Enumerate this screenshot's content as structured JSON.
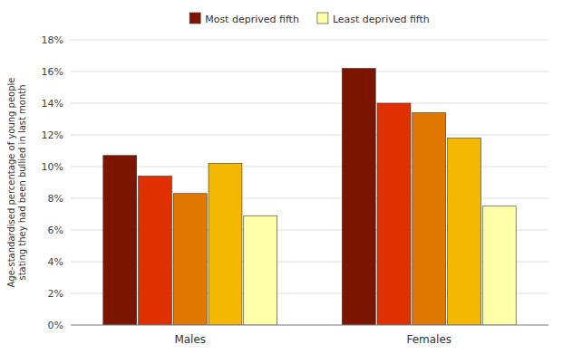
{
  "chart_data": {
    "type": "bar",
    "categories": [
      "Males",
      "Females"
    ],
    "series": [
      {
        "name": "Most deprived fifth",
        "color": "#7B1500",
        "values": [
          10.7,
          16.2
        ]
      },
      {
        "color": "#E03000",
        "values": [
          9.4,
          14.0
        ]
      },
      {
        "color": "#E07800",
        "values": [
          8.3,
          13.4
        ]
      },
      {
        "color": "#F5B800",
        "values": [
          10.2,
          11.8
        ]
      },
      {
        "name": "Least deprived fifth",
        "color": "#FFFFAA",
        "values": [
          6.9,
          7.5
        ]
      }
    ],
    "ylabel": "Age-standardised percentage of young people\nstating they had been bullied in last month",
    "ylim": [
      0,
      18
    ],
    "yticks": [
      {
        "value": 0,
        "label": "0%"
      },
      {
        "value": 2,
        "label": "2%"
      },
      {
        "value": 4,
        "label": "4%"
      },
      {
        "value": 6,
        "label": "6%"
      },
      {
        "value": 8,
        "label": "8%"
      },
      {
        "value": 10,
        "label": "10%"
      },
      {
        "value": 12,
        "label": "12%"
      },
      {
        "value": 14,
        "label": "14%"
      },
      {
        "value": 16,
        "label": "16%"
      },
      {
        "value": 18,
        "label": "18%"
      }
    ],
    "grid": true,
    "legend": "top"
  }
}
